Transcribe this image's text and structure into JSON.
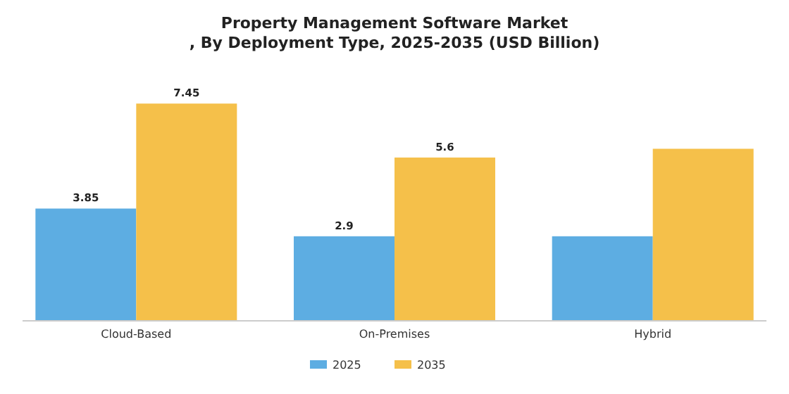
{
  "chart_data": {
    "type": "bar",
    "title": "Property Management Software Market\n, By Deployment Type, 2025-2035 (USD Billion)",
    "categories": [
      "Cloud-Based",
      "On-Premises",
      "Hybrid"
    ],
    "series": [
      {
        "name": "2025",
        "color": "#5dade2",
        "values": [
          3.85,
          2.9,
          2.9
        ],
        "value_labels": [
          "3.85",
          "2.9",
          null
        ]
      },
      {
        "name": "2035",
        "color": "#f5c04a",
        "values": [
          7.45,
          5.6,
          5.9
        ],
        "value_labels": [
          "7.45",
          "5.6",
          null
        ]
      }
    ],
    "legend": "bottom",
    "grid": false
  }
}
